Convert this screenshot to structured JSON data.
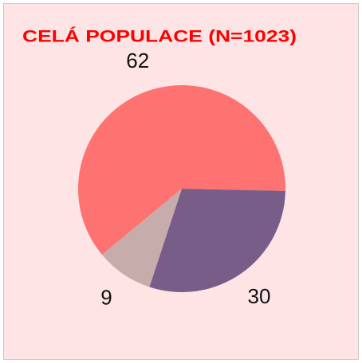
{
  "chart_data": {
    "type": "pie",
    "title": "CELÁ POPULACE (N=1023)",
    "values": [
      62,
      30,
      9
    ],
    "colors": [
      "#ff7272",
      "#775d88",
      "#c7acac"
    ],
    "title_color": "#ff0000"
  }
}
